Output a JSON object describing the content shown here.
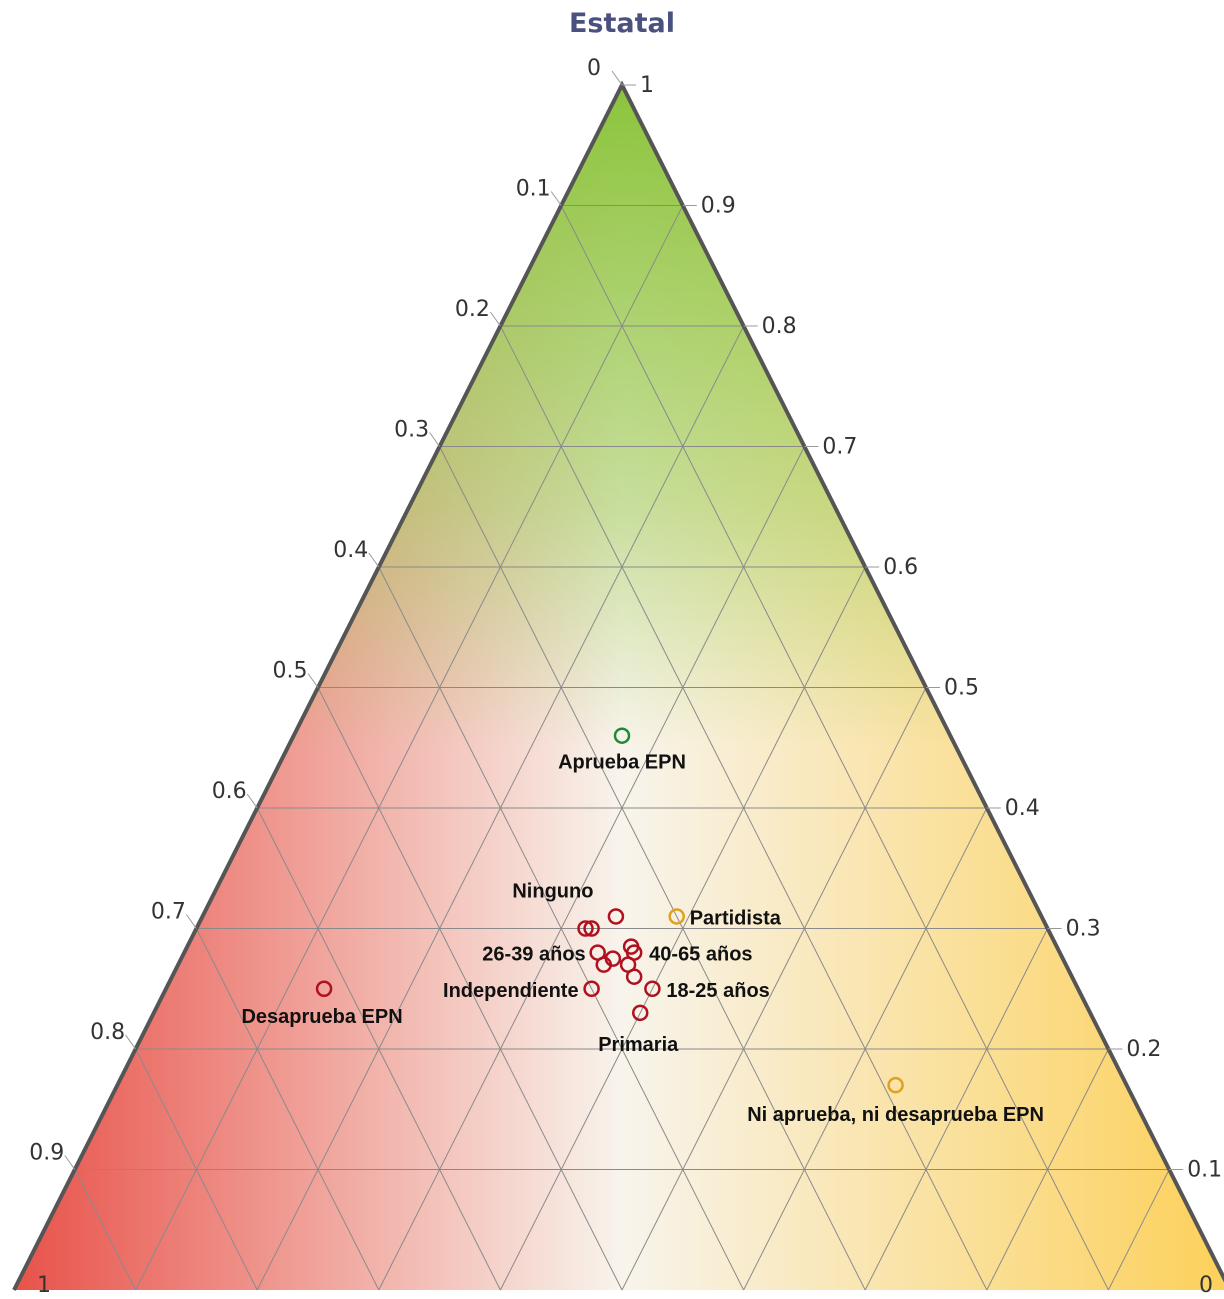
{
  "chart_data": {
    "type": "scatter",
    "subtype": "ternary",
    "title": "Estatal",
    "vertex_labels": {
      "bottom_left": "1",
      "bottom_right": "0"
    },
    "left_axis_ticks": [
      "0",
      "0.1",
      "0.2",
      "0.3",
      "0.4",
      "0.5",
      "0.6",
      "0.7",
      "0.8",
      "0.9"
    ],
    "right_axis_ticks": [
      "1",
      "0.9",
      "0.8",
      "0.7",
      "0.6",
      "0.5",
      "0.4",
      "0.3",
      "0.2",
      "0.1"
    ],
    "grid": true,
    "colors": {
      "approve": "#8cc43c",
      "disapprove": "#e8524a",
      "neither": "#fcd05a",
      "axis": "#555555",
      "grid": "#8a8a8a",
      "point_red": "#b0101f",
      "point_orange": "#e0a020",
      "point_green": "#1e8a32"
    },
    "series": [
      {
        "color": "point_green",
        "points": [
          {
            "label": "Aprueba EPN",
            "approve": 0.46,
            "disapprove": 0.27,
            "neither": 0.27
          }
        ]
      },
      {
        "color": "point_orange",
        "points": [
          {
            "label": "Partidista",
            "approve": 0.31,
            "disapprove": 0.3,
            "neither": 0.39
          },
          {
            "label": "Ni aprueba, ni desaprueba EPN",
            "approve": 0.17,
            "disapprove": 0.19,
            "neither": 0.64
          }
        ]
      },
      {
        "color": "point_red",
        "points": [
          {
            "label": "Desaprueba EPN",
            "approve": 0.25,
            "disapprove": 0.62,
            "neither": 0.13
          },
          {
            "label": "Ninguno",
            "approve": 0.31,
            "disapprove": 0.35,
            "neither": 0.34
          },
          {
            "label": "26-39 años",
            "approve": 0.28,
            "disapprove": 0.38,
            "neither": 0.34
          },
          {
            "label": "40-65 años",
            "approve": 0.28,
            "disapprove": 0.35,
            "neither": 0.37
          },
          {
            "label": "Independiente",
            "approve": 0.25,
            "disapprove": 0.4,
            "neither": 0.35
          },
          {
            "label": "18-25 años",
            "approve": 0.25,
            "disapprove": 0.35,
            "neither": 0.4
          },
          {
            "label": "Primaria",
            "approve": 0.23,
            "disapprove": 0.37,
            "neither": 0.4
          },
          {
            "label": "",
            "approve": 0.3,
            "disapprove": 0.38,
            "neither": 0.32
          },
          {
            "label": "",
            "approve": 0.3,
            "disapprove": 0.375,
            "neither": 0.325
          },
          {
            "label": "",
            "approve": 0.27,
            "disapprove": 0.38,
            "neither": 0.35
          },
          {
            "label": "",
            "approve": 0.275,
            "disapprove": 0.37,
            "neither": 0.355
          },
          {
            "label": "",
            "approve": 0.27,
            "disapprove": 0.36,
            "neither": 0.37
          },
          {
            "label": "",
            "approve": 0.285,
            "disapprove": 0.35,
            "neither": 0.365
          },
          {
            "label": "",
            "approve": 0.26,
            "disapprove": 0.36,
            "neither": 0.38
          }
        ]
      }
    ]
  }
}
